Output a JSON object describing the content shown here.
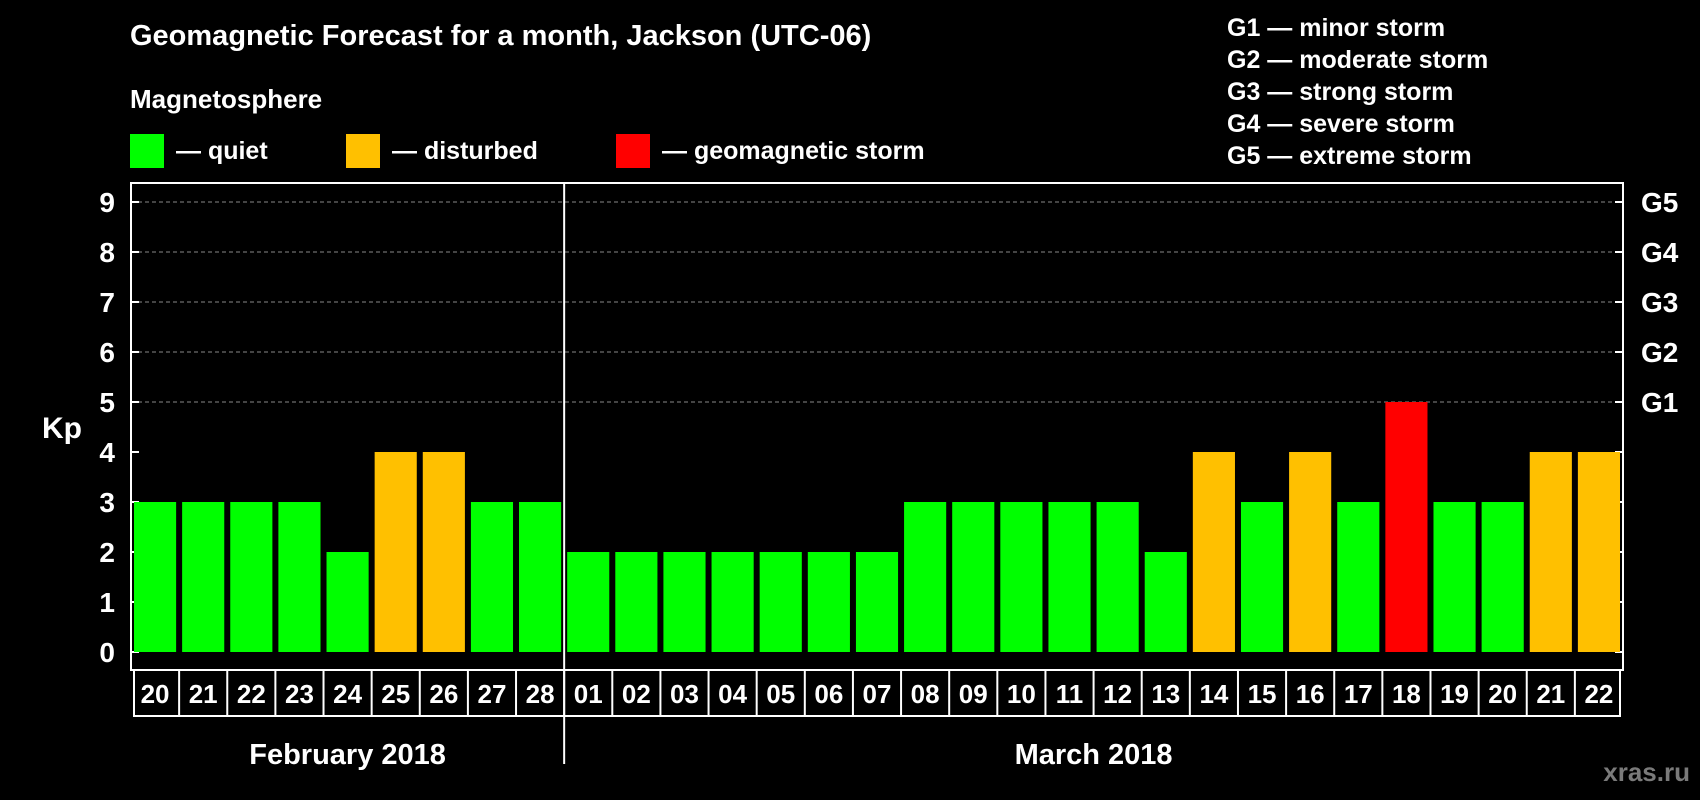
{
  "title": "Geomagnetic Forecast for a month, Jackson (UTC-06)",
  "subtitle": "Magnetosphere",
  "legend": [
    {
      "label": "— quiet",
      "color": "#00ff00"
    },
    {
      "label": "— disturbed",
      "color": "#ffc000"
    },
    {
      "label": "— geomagnetic storm",
      "color": "#ff0000"
    }
  ],
  "storm_scale": [
    "G1 — minor storm",
    "G2 — moderate storm",
    "G3 — strong storm",
    "G4 — severe storm",
    "G5 — extreme storm"
  ],
  "watermark": "xras.ru",
  "chart_data": {
    "type": "bar",
    "ylabel": "Kp",
    "ylim": [
      0,
      9
    ],
    "yticks": [
      0,
      1,
      2,
      3,
      4,
      5,
      6,
      7,
      8,
      9
    ],
    "right_axis_labels": [
      {
        "value": 5,
        "label": "G1"
      },
      {
        "value": 6,
        "label": "G2"
      },
      {
        "value": 7,
        "label": "G3"
      },
      {
        "value": 8,
        "label": "G4"
      },
      {
        "value": 9,
        "label": "G5"
      }
    ],
    "categories": [
      "20",
      "21",
      "22",
      "23",
      "24",
      "25",
      "26",
      "27",
      "28",
      "01",
      "02",
      "03",
      "04",
      "05",
      "06",
      "07",
      "08",
      "09",
      "10",
      "11",
      "12",
      "13",
      "14",
      "15",
      "16",
      "17",
      "18",
      "19",
      "20",
      "21",
      "22"
    ],
    "values": [
      3,
      3,
      3,
      3,
      2,
      4,
      4,
      3,
      3,
      2,
      2,
      2,
      2,
      2,
      2,
      2,
      3,
      3,
      3,
      3,
      3,
      2,
      4,
      3,
      4,
      3,
      5,
      3,
      3,
      4,
      4
    ],
    "months": [
      {
        "label": "February 2018",
        "start": 0,
        "end": 8
      },
      {
        "label": "March 2018",
        "start": 9,
        "end": 30
      }
    ],
    "color_scale": [
      {
        "max": 3,
        "color": "#00ff00"
      },
      {
        "max": 4,
        "color": "#ffc000"
      },
      {
        "max": 9,
        "color": "#ff0000"
      }
    ],
    "grid": true
  }
}
